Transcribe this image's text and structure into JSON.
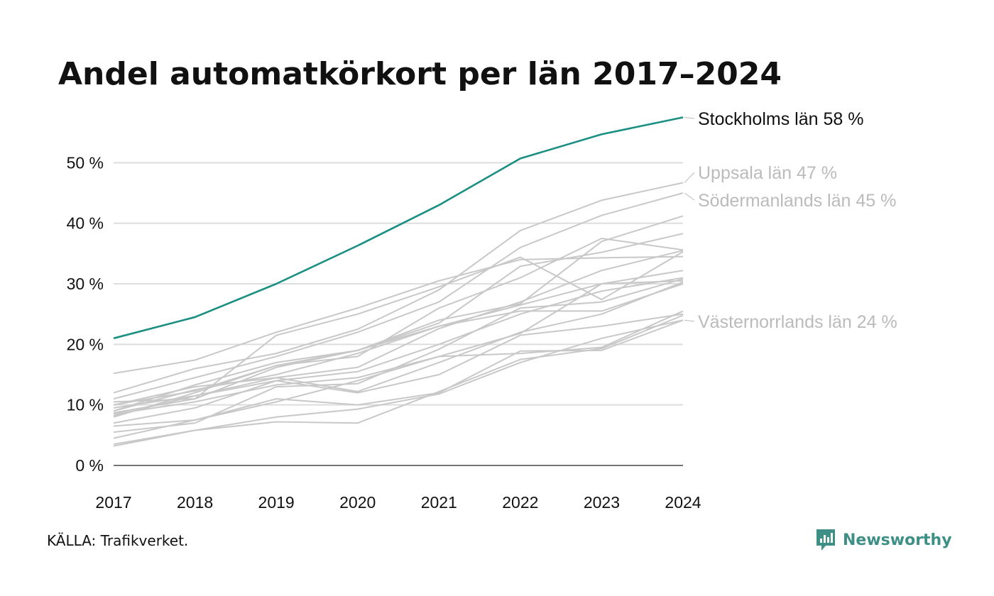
{
  "chart_data": {
    "type": "line",
    "title": "Andel automatkörkort per län 2017–2024",
    "x": [
      "2017",
      "2018",
      "2019",
      "2020",
      "2021",
      "2022",
      "2023",
      "2024"
    ],
    "x_tick_labels": [
      "2017",
      "2018",
      "2019",
      "2020",
      "2021",
      "2022",
      "2023",
      "2024"
    ],
    "y_tick_labels": [
      "0 %",
      "10 %",
      "20 %",
      "30 %",
      "40 %",
      "50 %"
    ],
    "y_ticks": [
      0,
      10,
      20,
      30,
      40,
      50
    ],
    "ylim": [
      0,
      60
    ],
    "grid": true,
    "highlight": [
      {
        "name": "Stockholms län",
        "label": "Stockholms län 58 %",
        "color": "#1a8f82",
        "values": [
          21.0,
          24.5,
          30.0,
          36.3,
          43.0,
          50.7,
          54.7,
          57.5
        ]
      },
      {
        "name": "Uppsala län",
        "label": "Uppsala län 47 %",
        "color": "#c8c8c8",
        "values": [
          12.0,
          16.0,
          18.5,
          22.5,
          29.0,
          38.8,
          43.8,
          46.7
        ]
      },
      {
        "name": "Södermanlands län",
        "label": "Södermanlands län 45 %",
        "color": "#c8c8c8",
        "values": [
          11.0,
          14.5,
          18.0,
          22.0,
          27.0,
          36.0,
          41.3,
          45.0
        ]
      },
      {
        "name": "Västernorrlands län",
        "label": "Västernorrlands län 24 %",
        "color": "#c8c8c8",
        "values": [
          3.5,
          5.8,
          8.0,
          9.3,
          11.8,
          17.0,
          21.0,
          24.0
        ]
      }
    ],
    "series": [
      {
        "values": [
          15.2,
          17.4,
          22.0,
          26.0,
          30.5,
          34.0,
          34.3,
          34.5
        ]
      },
      {
        "values": [
          10.0,
          12.3,
          16.5,
          19.0,
          24.0,
          26.7,
          37.0,
          41.2
        ]
      },
      {
        "values": [
          9.0,
          13.3,
          17.0,
          19.0,
          23.5,
          32.9,
          35.2,
          38.3
        ]
      },
      {
        "values": [
          8.7,
          11.0,
          21.5,
          25.0,
          29.5,
          34.4,
          27.4,
          35.3
        ]
      },
      {
        "values": [
          8.0,
          12.0,
          16.5,
          18.0,
          26.0,
          31.0,
          37.5,
          35.6
        ]
      },
      {
        "values": [
          10.0,
          13.0,
          14.5,
          16.2,
          22.6,
          27.0,
          32.2,
          35.5
        ]
      },
      {
        "values": [
          9.0,
          12.5,
          15.0,
          18.5,
          23.0,
          26.5,
          30.0,
          32.2
        ]
      },
      {
        "values": [
          10.5,
          11.0,
          16.2,
          19.0,
          23.0,
          25.5,
          25.5,
          30.0
        ]
      },
      {
        "values": [
          8.2,
          11.5,
          14.0,
          15.5,
          20.0,
          25.0,
          28.8,
          31.0
        ]
      },
      {
        "values": [
          8.5,
          10.5,
          13.3,
          14.5,
          18.0,
          21.8,
          30.0,
          30.5
        ]
      },
      {
        "values": [
          5.5,
          7.0,
          13.0,
          13.5,
          19.2,
          26.0,
          27.0,
          30.8
        ]
      },
      {
        "values": [
          9.5,
          11.5,
          14.5,
          12.2,
          17.0,
          22.0,
          25.0,
          30.3
        ]
      },
      {
        "values": [
          7.0,
          9.5,
          14.0,
          12.0,
          15.0,
          21.5,
          23.0,
          25.0
        ]
      },
      {
        "values": [
          4.5,
          7.5,
          10.5,
          14.0,
          18.0,
          18.5,
          19.5,
          25.5
        ]
      },
      {
        "values": [
          6.5,
          7.5,
          11.0,
          10.0,
          12.0,
          18.9,
          19.0,
          24.0
        ]
      },
      {
        "values": [
          3.2,
          5.8,
          7.2,
          7.0,
          12.2,
          17.5,
          19.3,
          24.8
        ]
      }
    ]
  },
  "source": "KÄLLA: Trafikverket.",
  "brand": {
    "name": "Newsworthy",
    "icon": "newsworthy-logo-icon",
    "color": "#3e8f85"
  }
}
